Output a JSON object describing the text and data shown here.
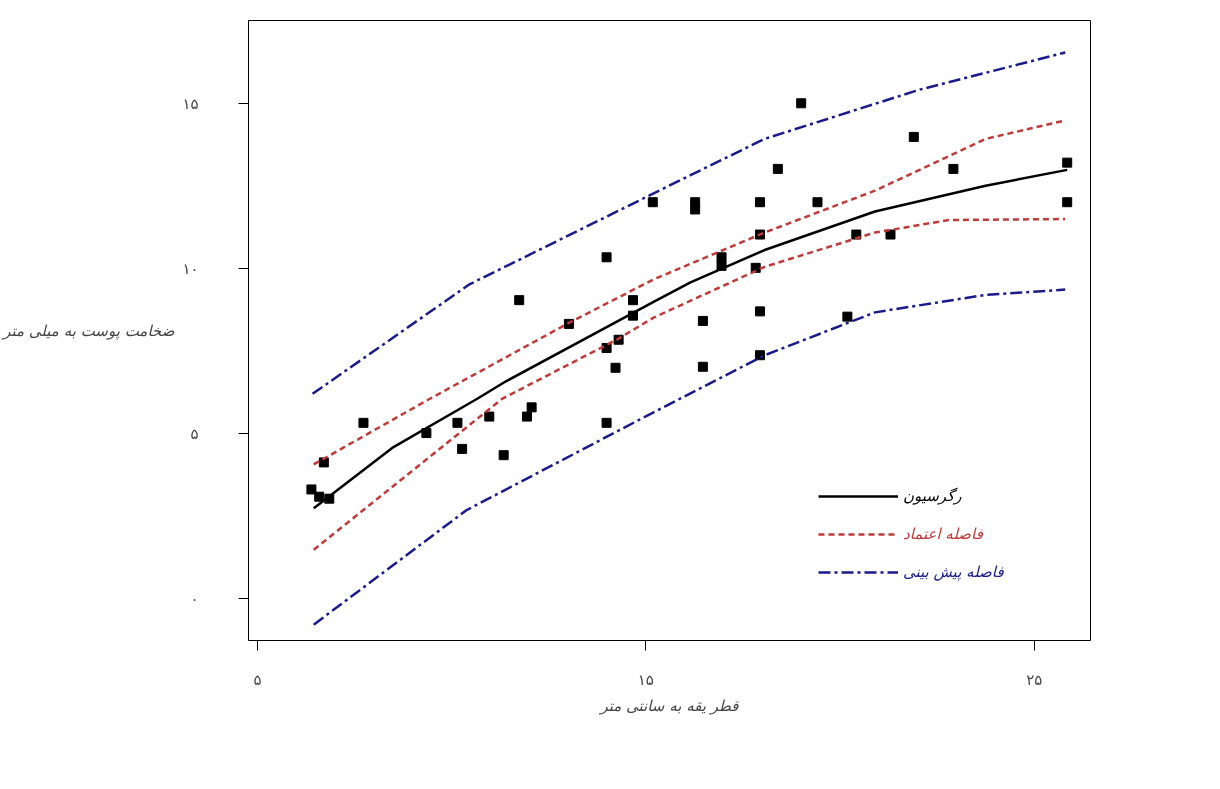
{
  "chart_data": {
    "type": "scatter",
    "xlabel": "قطر یقه به سانتی متر",
    "ylabel": "ضخامت پوست به میلی متر",
    "xlim": [
      4.77,
      26.45
    ],
    "ylim": [
      -1.27,
      17.53
    ],
    "xticks": [
      {
        "value": 5,
        "label": "۵"
      },
      {
        "value": 15,
        "label": "۱۵"
      },
      {
        "value": 25,
        "label": "۲۵"
      }
    ],
    "yticks": [
      {
        "value": 0,
        "label": "۰"
      },
      {
        "value": 5,
        "label": "۵"
      },
      {
        "value": 10,
        "label": "۱۰"
      },
      {
        "value": 15,
        "label": "۱۵"
      }
    ],
    "grid": false,
    "legend": "bottom right",
    "series": [
      {
        "marker": "square",
        "color": "#000000",
        "x": [
          6.39,
          6.59,
          6.85,
          6.71,
          7.73,
          9.35,
          10.15,
          10.27,
          10.97,
          11.34,
          11.74,
          11.94,
          12.06,
          13.02,
          13.99,
          13.99,
          13.99,
          14.22,
          14.3,
          14.67,
          14.67,
          15.18,
          16.27,
          16.27,
          16.47,
          16.47,
          16.95,
          16.95,
          17.83,
          17.94,
          17.94,
          17.94,
          17.94,
          18.4,
          19.0,
          19.42,
          20.19,
          20.42,
          21.3,
          21.9,
          22.92,
          25.85,
          25.85
        ],
        "values": [
          3.31,
          3.09,
          3.03,
          4.13,
          5.33,
          5.02,
          5.33,
          4.54,
          5.52,
          4.35,
          9.05,
          5.52,
          5.8,
          8.33,
          10.35,
          7.6,
          5.33,
          7.0,
          7.85,
          9.05,
          8.58,
          12.02,
          12.02,
          11.8,
          8.42,
          7.03,
          10.35,
          10.09,
          10.03,
          12.02,
          11.04,
          8.71,
          7.38,
          13.03,
          15.02,
          12.02,
          8.55,
          11.04,
          11.04,
          14.0,
          13.03,
          13.22,
          12.02
        ]
      },
      {
        "type": "line",
        "name": "رگرسیون",
        "line_style": "solid",
        "color": "#000000",
        "x": [
          6.45,
          8.47,
          10.66,
          11.4,
          15.2,
          16.15,
          18.06,
          20.9,
          23.75,
          25.85
        ],
        "values": [
          2.74,
          4.57,
          6.06,
          6.59,
          9.0,
          9.59,
          10.57,
          11.74,
          12.52,
          13.0
        ]
      },
      {
        "type": "line",
        "name": "فاصله اعتماد",
        "line_style": "dashed",
        "color": "#c03a3a",
        "x": [
          6.45,
          9.44,
          13.02,
          15.2,
          18.06,
          20.9,
          23.75,
          25.8
        ],
        "values": [
          4.07,
          6.06,
          8.36,
          9.68,
          11.1,
          12.37,
          13.94,
          14.5
        ]
      },
      {
        "type": "line",
        "line_style": "dashed",
        "color": "#c03a3a",
        "x": [
          6.45,
          11.3,
          14.25,
          15.2,
          18.06,
          20.9,
          22.8,
          25.8
        ],
        "values": [
          1.48,
          6.06,
          7.85,
          8.52,
          10.06,
          11.1,
          11.48,
          11.51
        ]
      },
      {
        "type": "line",
        "name": "فاصله پیش بینی",
        "line_style": "dashdot",
        "color": "#1a1a8c",
        "x": [
          6.42,
          10.46,
          16.15,
          18.06,
          22.04,
          25.8
        ],
        "values": [
          6.21,
          9.53,
          12.84,
          13.94,
          15.43,
          16.56
        ]
      },
      {
        "type": "line",
        "line_style": "dashdot",
        "color": "#1a1a8c",
        "x": [
          6.45,
          10.38,
          15.2,
          18.06,
          20.9,
          23.75,
          25.8
        ],
        "values": [
          -0.79,
          2.68,
          5.65,
          7.38,
          8.68,
          9.21,
          9.37
        ]
      }
    ]
  }
}
